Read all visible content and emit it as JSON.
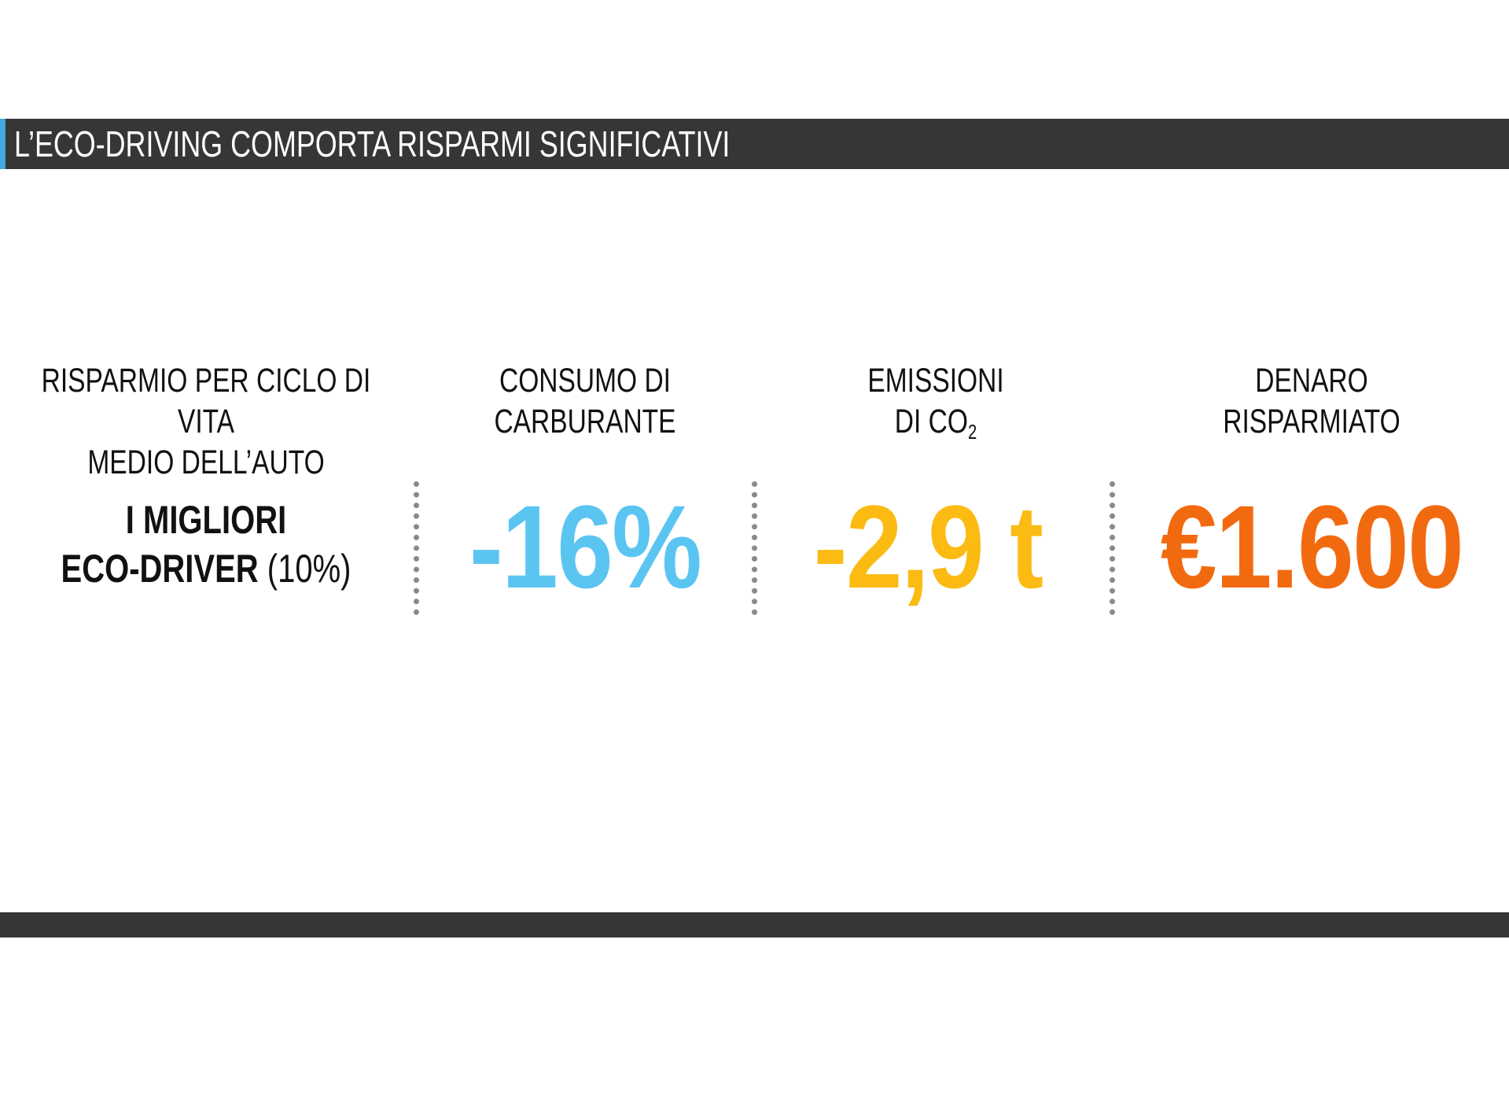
{
  "title": "L’ECO-DRIVING COMPORTA RISPARMI SIGNIFICATIVI",
  "colors": {
    "bar": "#363636",
    "accent": "#3fa9e0",
    "fuel": "#5bc5f2",
    "co2": "#fbbb13",
    "money": "#f26a10"
  },
  "columns": [
    {
      "header_line1": "RISPARMIO PER CICLO DI VITA",
      "header_line2": "MEDIO DELL’AUTO",
      "lead_line1": "I MIGLIORI",
      "lead_line2_bold": "ECO-DRIVER",
      "lead_line2_light": "(10%)"
    },
    {
      "header_line1": "CONSUMO DI",
      "header_line2": "CARBURANTE",
      "value": "-16%"
    },
    {
      "header_line1": "EMISSIONI",
      "header_line2": "DI CO",
      "header_sub": "2",
      "value": "-2,9 t"
    },
    {
      "header_line1": "DENARO",
      "header_line2": "RISPARMIATO",
      "value": "€1.600"
    }
  ]
}
